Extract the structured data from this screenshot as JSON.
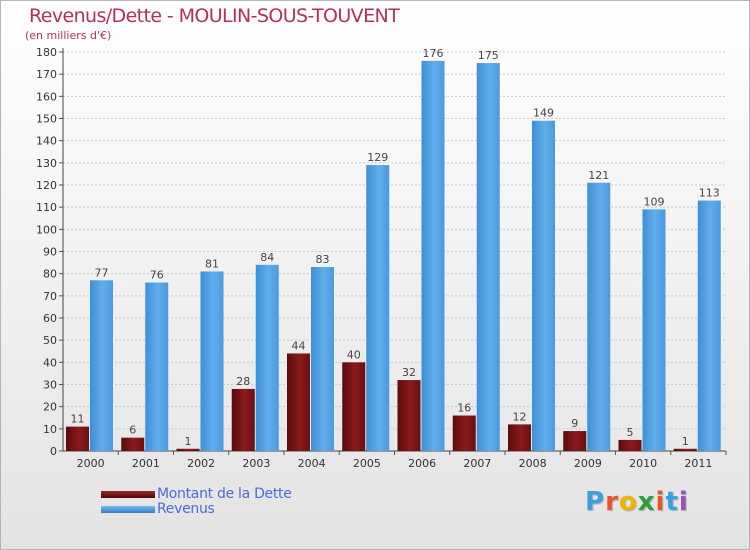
{
  "header": {
    "title": "Revenus/Dette - MOULIN-SOUS-TOUVENT",
    "subtitle": "(en milliers d'€)"
  },
  "chart_data": {
    "type": "bar",
    "title": "Revenus/Dette - MOULIN-SOUS-TOUVENT",
    "ylabel": "(en milliers d'€)",
    "xlabel": "",
    "ylim": [
      0,
      180
    ],
    "ytick_step": 10,
    "grid": true,
    "categories": [
      "2000",
      "2001",
      "2002",
      "2003",
      "2004",
      "2005",
      "2006",
      "2007",
      "2008",
      "2009",
      "2010",
      "2011"
    ],
    "series": [
      {
        "name": "Montant de la Dette",
        "color": "#7a1416",
        "values": [
          11,
          6,
          1,
          28,
          44,
          40,
          32,
          16,
          12,
          9,
          5,
          1
        ]
      },
      {
        "name": "Revenus",
        "color": "#4d9fe3",
        "values": [
          77,
          76,
          81,
          84,
          83,
          129,
          176,
          175,
          149,
          121,
          109,
          113
        ]
      }
    ],
    "legend_position": "bottom-left"
  },
  "legend": {
    "items": [
      {
        "label": "Montant de la Dette",
        "color": "#6a0f10"
      },
      {
        "label": "Revenus",
        "color": "#4d9fe3"
      }
    ]
  },
  "logo": {
    "letters": [
      "P",
      "r",
      "o",
      "x",
      "i",
      "t",
      "i"
    ],
    "colors": [
      "#3aa0e0",
      "#e8572a",
      "#f0b400",
      "#2e9e3e",
      "#e8572a",
      "#3aa0e0",
      "#9c4fb5"
    ]
  }
}
